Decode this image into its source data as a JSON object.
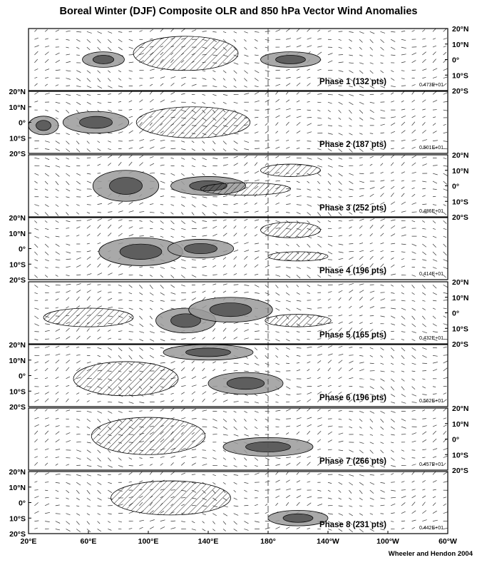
{
  "title": "Boreal Winter (DJF) Composite OLR and 850 hPa Vector Wind Anomalies",
  "credit": "Wheeler and Hendon 2004",
  "chart_data": {
    "type": "heatmap",
    "xlim": [
      20,
      300
    ],
    "ylim": [
      -20,
      20
    ],
    "x_ticks": [
      "20°E",
      "60°E",
      "100°E",
      "140°E",
      "180°",
      "140°W",
      "100°W",
      "60°W"
    ],
    "y_ticks": [
      "20°N",
      "10°N",
      "0°",
      "10°S",
      "20°S"
    ],
    "legend": "none",
    "colors": {
      "negative_olr": "#9a9a9a",
      "strong_negative_olr": "#5e5e5e",
      "coast": "#a6a6a6"
    },
    "panels": [
      {
        "label": "Phase 1 (132 pts)",
        "scale": "0.473E+01",
        "wet": [
          {
            "lon": 70,
            "lat": 0,
            "rx": 14,
            "ry": 5
          },
          {
            "lon": 195,
            "lat": 0,
            "rx": 20,
            "ry": 5
          }
        ],
        "dry": [
          {
            "lon": 125,
            "lat": 4,
            "rx": 35,
            "ry": 11
          }
        ]
      },
      {
        "label": "Phase 2 (187 pts)",
        "scale": "0.501E+01",
        "wet": [
          {
            "lon": 65,
            "lat": 0,
            "rx": 22,
            "ry": 7
          },
          {
            "lon": 30,
            "lat": -2,
            "rx": 10,
            "ry": 6
          }
        ],
        "dry": [
          {
            "lon": 130,
            "lat": 0,
            "rx": 38,
            "ry": 10
          }
        ]
      },
      {
        "label": "Phase 3 (252 pts)",
        "scale": "0.486E+01",
        "wet": [
          {
            "lon": 85,
            "lat": 0,
            "rx": 22,
            "ry": 10
          },
          {
            "lon": 140,
            "lat": 0,
            "rx": 25,
            "ry": 6
          }
        ],
        "dry": [
          {
            "lon": 165,
            "lat": -2,
            "rx": 30,
            "ry": 4
          },
          {
            "lon": 195,
            "lat": 10,
            "rx": 20,
            "ry": 4
          }
        ]
      },
      {
        "label": "Phase 4 (196 pts)",
        "scale": "0.414E+01",
        "wet": [
          {
            "lon": 95,
            "lat": -2,
            "rx": 28,
            "ry": 9
          },
          {
            "lon": 135,
            "lat": 0,
            "rx": 22,
            "ry": 6
          }
        ],
        "dry": [
          {
            "lon": 195,
            "lat": 12,
            "rx": 20,
            "ry": 5
          },
          {
            "lon": 200,
            "lat": -5,
            "rx": 20,
            "ry": 3
          }
        ]
      },
      {
        "label": "Phase 5 (165 pts)",
        "scale": "0.432E+01",
        "wet": [
          {
            "lon": 125,
            "lat": -5,
            "rx": 20,
            "ry": 8
          },
          {
            "lon": 155,
            "lat": 2,
            "rx": 28,
            "ry": 8
          }
        ],
        "dry": [
          {
            "lon": 60,
            "lat": -3,
            "rx": 30,
            "ry": 6
          },
          {
            "lon": 200,
            "lat": -5,
            "rx": 22,
            "ry": 4
          }
        ]
      },
      {
        "label": "Phase 6 (196 pts)",
        "scale": "0.562E+01",
        "wet": [
          {
            "lon": 165,
            "lat": -5,
            "rx": 25,
            "ry": 7
          },
          {
            "lon": 140,
            "lat": 15,
            "rx": 30,
            "ry": 5
          }
        ],
        "dry": [
          {
            "lon": 85,
            "lat": -2,
            "rx": 35,
            "ry": 11
          }
        ]
      },
      {
        "label": "Phase 7 (266 pts)",
        "scale": "0.457E+01",
        "wet": [
          {
            "lon": 180,
            "lat": -5,
            "rx": 30,
            "ry": 6
          }
        ],
        "dry": [
          {
            "lon": 100,
            "lat": 2,
            "rx": 38,
            "ry": 12
          }
        ]
      },
      {
        "label": "Phase 8 (231 pts)",
        "scale": "0.442E+01",
        "wet": [
          {
            "lon": 200,
            "lat": -10,
            "rx": 20,
            "ry": 5
          }
        ],
        "dry": [
          {
            "lon": 115,
            "lat": 3,
            "rx": 40,
            "ry": 11
          }
        ]
      }
    ]
  }
}
